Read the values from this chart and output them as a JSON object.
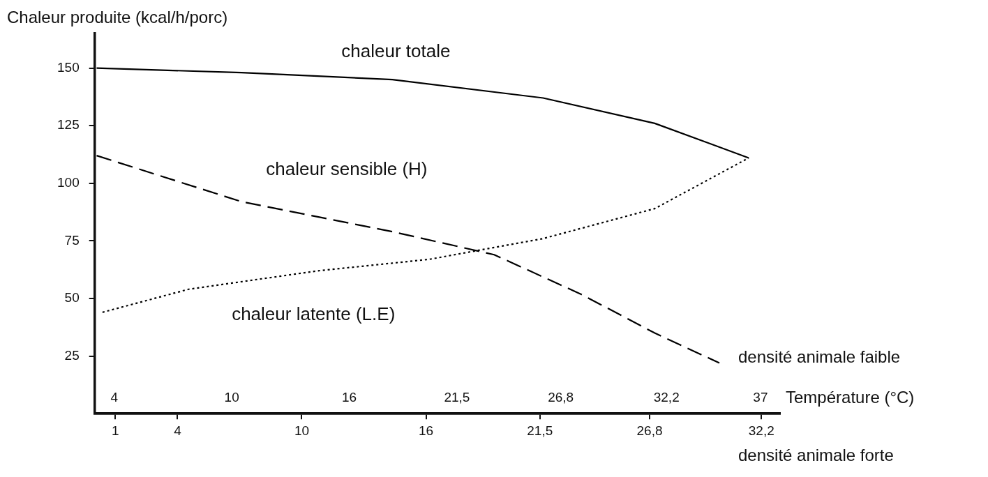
{
  "chart_data": {
    "type": "line",
    "ylabel": "Chaleur produite (kcal/h/porc)",
    "xlabel": "Température (°C)",
    "annotations": [
      "densité animale faible",
      "densité animale forte"
    ],
    "xlim": [
      3,
      38
    ],
    "xticks": [
      4,
      10,
      16,
      {
        "value": 21.5,
        "label": "21,5"
      },
      {
        "value": 26.8,
        "label": "26,8"
      },
      {
        "value": 32.2,
        "label": "32,2"
      },
      37
    ],
    "x2lim": [
      0,
      33.1
    ],
    "x2ticks": [
      1,
      4,
      10,
      16,
      {
        "value": 21.5,
        "label": "21,5"
      },
      {
        "value": 26.8,
        "label": "26,8"
      },
      {
        "value": 32.2,
        "label": "32,2"
      }
    ],
    "ylim": [
      0,
      165
    ],
    "yticks": [
      25,
      50,
      75,
      100,
      125,
      150
    ],
    "grid": false,
    "legend": false,
    "marker": "none",
    "series": [
      {
        "name": "chaleur totale",
        "color": "#000000",
        "line_style": "solid",
        "x": [
          3.1,
          10.5,
          18.2,
          25.9,
          31.6,
          36.4
        ],
        "values": [
          150,
          148,
          145,
          137,
          126,
          111
        ]
      },
      {
        "name": "chaleur sensible (H)",
        "color": "#000000",
        "line_style": "dashed",
        "x": [
          3.1,
          10.5,
          18.2,
          23.4,
          27.8,
          31.6,
          34.9
        ],
        "values": [
          112,
          92,
          79,
          69,
          52,
          35,
          22
        ]
      },
      {
        "name": "chaleur latente (L.E)",
        "color": "#000000",
        "line_style": "dotted",
        "x": [
          3.4,
          7.8,
          14.4,
          20.1,
          25.9,
          31.6,
          36.4
        ],
        "values": [
          44,
          54,
          62,
          67,
          76,
          89,
          111
        ]
      }
    ]
  }
}
